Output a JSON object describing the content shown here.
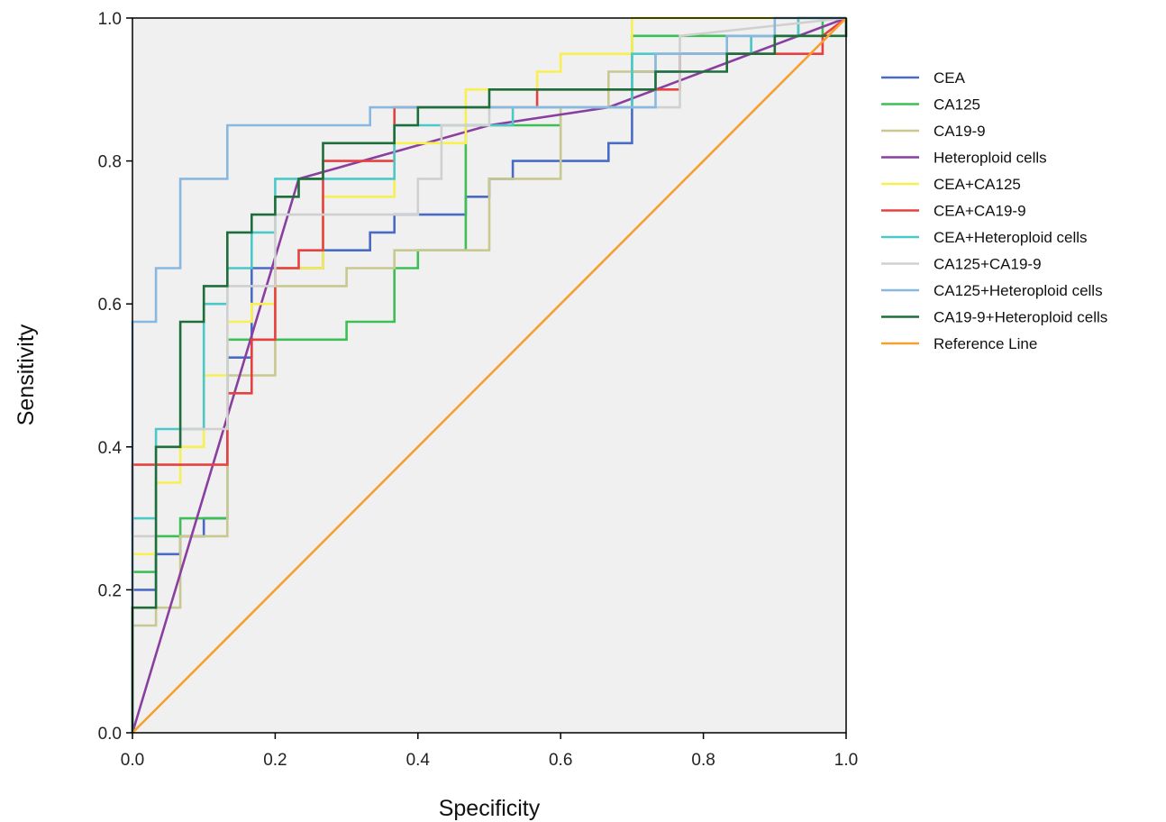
{
  "chart_data": {
    "type": "line",
    "title": "",
    "xlabel": "Specificity",
    "ylabel": "Sensitivity",
    "xlim": [
      0,
      1
    ],
    "ylim": [
      0,
      1
    ],
    "xticks": [
      "0.0",
      "0.2",
      "0.4",
      "0.6",
      "0.8",
      "1.0"
    ],
    "yticks": [
      "0.0",
      "0.2",
      "0.4",
      "0.6",
      "0.8",
      "1.0"
    ],
    "grid": false,
    "background": "#f0f0f0",
    "legend_position": "right",
    "series": [
      {
        "name": "CEA",
        "color": "#4a6bc5",
        "x": [
          0,
          0,
          0.033,
          0.033,
          0.067,
          0.067,
          0.1,
          0.1,
          0.133,
          0.133,
          0.167,
          0.167,
          0.2,
          0.2,
          0.233,
          0.233,
          0.267,
          0.267,
          0.333,
          0.333,
          0.367,
          0.367,
          0.467,
          0.467,
          0.5,
          0.5,
          0.533,
          0.533,
          0.567,
          0.567,
          0.6,
          0.6,
          0.667,
          0.667,
          0.7,
          0.7,
          0.767,
          0.767,
          0.8,
          0.8,
          0.867,
          0.867,
          0.933,
          0.933,
          1.0
        ],
        "y": [
          0,
          0.2,
          0.2,
          0.25,
          0.25,
          0.275,
          0.275,
          0.3,
          0.3,
          0.525,
          0.525,
          0.65,
          0.65,
          0.65,
          0.65,
          0.65,
          0.65,
          0.675,
          0.675,
          0.7,
          0.7,
          0.725,
          0.725,
          0.75,
          0.75,
          0.775,
          0.775,
          0.8,
          0.8,
          0.8,
          0.8,
          0.8,
          0.8,
          0.825,
          0.825,
          0.925,
          0.925,
          0.95,
          0.95,
          0.95,
          0.95,
          0.975,
          0.975,
          1.0,
          1.0
        ]
      },
      {
        "name": "CA125",
        "color": "#3dbf55",
        "x": [
          0,
          0,
          0.033,
          0.033,
          0.067,
          0.067,
          0.1,
          0.1,
          0.133,
          0.133,
          0.2,
          0.2,
          0.267,
          0.267,
          0.3,
          0.3,
          0.367,
          0.367,
          0.4,
          0.4,
          0.467,
          0.467,
          0.6,
          0.6,
          0.7,
          0.7,
          0.8,
          0.8,
          0.9,
          0.9,
          0.967,
          0.967,
          1.0
        ],
        "y": [
          0,
          0.225,
          0.225,
          0.275,
          0.275,
          0.3,
          0.3,
          0.3,
          0.3,
          0.55,
          0.55,
          0.55,
          0.55,
          0.55,
          0.55,
          0.575,
          0.575,
          0.65,
          0.65,
          0.675,
          0.675,
          0.85,
          0.85,
          0.875,
          0.875,
          0.975,
          0.975,
          0.975,
          0.975,
          0.975,
          0.975,
          1.0,
          1.0
        ]
      },
      {
        "name": "CA19-9",
        "color": "#c8c890",
        "x": [
          0,
          0,
          0.033,
          0.033,
          0.067,
          0.067,
          0.1,
          0.1,
          0.133,
          0.133,
          0.167,
          0.167,
          0.2,
          0.2,
          0.3,
          0.3,
          0.367,
          0.367,
          0.5,
          0.5,
          0.6,
          0.6,
          0.667,
          0.667,
          0.733,
          0.733,
          0.9,
          0.9,
          0.933,
          0.933,
          1.0
        ],
        "y": [
          0,
          0.15,
          0.15,
          0.175,
          0.175,
          0.275,
          0.275,
          0.275,
          0.275,
          0.5,
          0.5,
          0.5,
          0.5,
          0.625,
          0.625,
          0.65,
          0.65,
          0.675,
          0.675,
          0.775,
          0.775,
          0.875,
          0.875,
          0.925,
          0.925,
          0.95,
          0.95,
          0.975,
          0.975,
          1.0,
          1.0
        ]
      },
      {
        "name": "Heteroploid cells",
        "color": "#8a3fa0",
        "x": [
          0,
          0.233,
          0.5,
          0.667,
          0.8,
          1.0
        ],
        "y": [
          0,
          0.775,
          0.85,
          0.875,
          0.925,
          1.0
        ]
      },
      {
        "name": "CEA+CA125",
        "color": "#f7f050",
        "x": [
          0,
          0,
          0.033,
          0.033,
          0.067,
          0.067,
          0.1,
          0.1,
          0.133,
          0.133,
          0.167,
          0.167,
          0.2,
          0.2,
          0.267,
          0.267,
          0.367,
          0.367,
          0.467,
          0.467,
          0.567,
          0.567,
          0.6,
          0.6,
          0.7,
          0.7,
          1.0
        ],
        "y": [
          0,
          0.25,
          0.25,
          0.35,
          0.35,
          0.4,
          0.4,
          0.5,
          0.5,
          0.575,
          0.575,
          0.6,
          0.6,
          0.65,
          0.65,
          0.75,
          0.75,
          0.825,
          0.825,
          0.9,
          0.9,
          0.925,
          0.925,
          0.95,
          0.95,
          1.0,
          1.0
        ]
      },
      {
        "name": "CEA+CA19-9",
        "color": "#e84040",
        "x": [
          0,
          0,
          0.133,
          0.133,
          0.167,
          0.167,
          0.2,
          0.2,
          0.233,
          0.233,
          0.267,
          0.267,
          0.367,
          0.367,
          0.567,
          0.567,
          0.767,
          0.767,
          0.967,
          0.967,
          1.0
        ],
        "y": [
          0,
          0.375,
          0.375,
          0.475,
          0.475,
          0.55,
          0.55,
          0.65,
          0.65,
          0.675,
          0.675,
          0.8,
          0.8,
          0.875,
          0.875,
          0.9,
          0.9,
          0.95,
          0.95,
          0.975,
          1.0
        ]
      },
      {
        "name": "CEA+Heteroploid cells",
        "color": "#4cc8c8",
        "x": [
          0,
          0,
          0.033,
          0.033,
          0.1,
          0.1,
          0.133,
          0.133,
          0.167,
          0.167,
          0.2,
          0.2,
          0.367,
          0.367,
          0.5,
          0.5,
          0.533,
          0.533,
          0.7,
          0.7,
          0.867,
          0.867,
          0.933,
          0.933,
          1.0
        ],
        "y": [
          0,
          0.3,
          0.3,
          0.425,
          0.425,
          0.6,
          0.6,
          0.65,
          0.65,
          0.7,
          0.7,
          0.775,
          0.775,
          0.85,
          0.85,
          0.85,
          0.85,
          0.875,
          0.875,
          0.95,
          0.95,
          0.975,
          0.975,
          1.0,
          1.0
        ]
      },
      {
        "name": "CA125+CA19-9",
        "color": "#d0d0d0",
        "x": [
          0,
          0,
          0.033,
          0.033,
          0.067,
          0.067,
          0.133,
          0.133,
          0.2,
          0.2,
          0.4,
          0.4,
          0.433,
          0.433,
          0.5,
          0.5,
          0.767,
          0.767,
          1.0
        ],
        "y": [
          0,
          0.275,
          0.275,
          0.4,
          0.4,
          0.425,
          0.425,
          0.625,
          0.625,
          0.725,
          0.725,
          0.775,
          0.775,
          0.85,
          0.85,
          0.875,
          0.875,
          0.975,
          1.0
        ]
      },
      {
        "name": "CA125+Heteroploid cells",
        "color": "#88b8e0",
        "x": [
          0,
          0,
          0.033,
          0.033,
          0.067,
          0.067,
          0.1,
          0.1,
          0.133,
          0.133,
          0.333,
          0.333,
          0.6,
          0.6,
          0.733,
          0.733,
          0.833,
          0.833,
          0.9,
          0.9,
          1.0
        ],
        "y": [
          0,
          0.575,
          0.575,
          0.65,
          0.65,
          0.775,
          0.775,
          0.775,
          0.775,
          0.85,
          0.85,
          0.875,
          0.875,
          0.875,
          0.875,
          0.95,
          0.95,
          0.975,
          0.975,
          1.0,
          1.0
        ]
      },
      {
        "name": "CA19-9+Heteroploid cells",
        "color": "#1e6e3c",
        "x": [
          0,
          0,
          0.033,
          0.033,
          0.067,
          0.067,
          0.1,
          0.1,
          0.133,
          0.133,
          0.167,
          0.167,
          0.2,
          0.2,
          0.233,
          0.233,
          0.267,
          0.267,
          0.367,
          0.367,
          0.4,
          0.4,
          0.5,
          0.5,
          0.733,
          0.733,
          0.767,
          0.767,
          0.833,
          0.833,
          0.9,
          0.9,
          1.0,
          1.0
        ],
        "y": [
          0,
          0.175,
          0.175,
          0.4,
          0.4,
          0.575,
          0.575,
          0.625,
          0.625,
          0.7,
          0.7,
          0.725,
          0.725,
          0.75,
          0.75,
          0.775,
          0.775,
          0.825,
          0.825,
          0.85,
          0.85,
          0.875,
          0.875,
          0.9,
          0.9,
          0.925,
          0.925,
          0.925,
          0.925,
          0.95,
          0.95,
          0.975,
          0.975,
          1.0
        ]
      },
      {
        "name": "Reference Line",
        "color": "#f5a030",
        "x": [
          0,
          1.0
        ],
        "y": [
          0,
          1.0
        ]
      }
    ]
  }
}
